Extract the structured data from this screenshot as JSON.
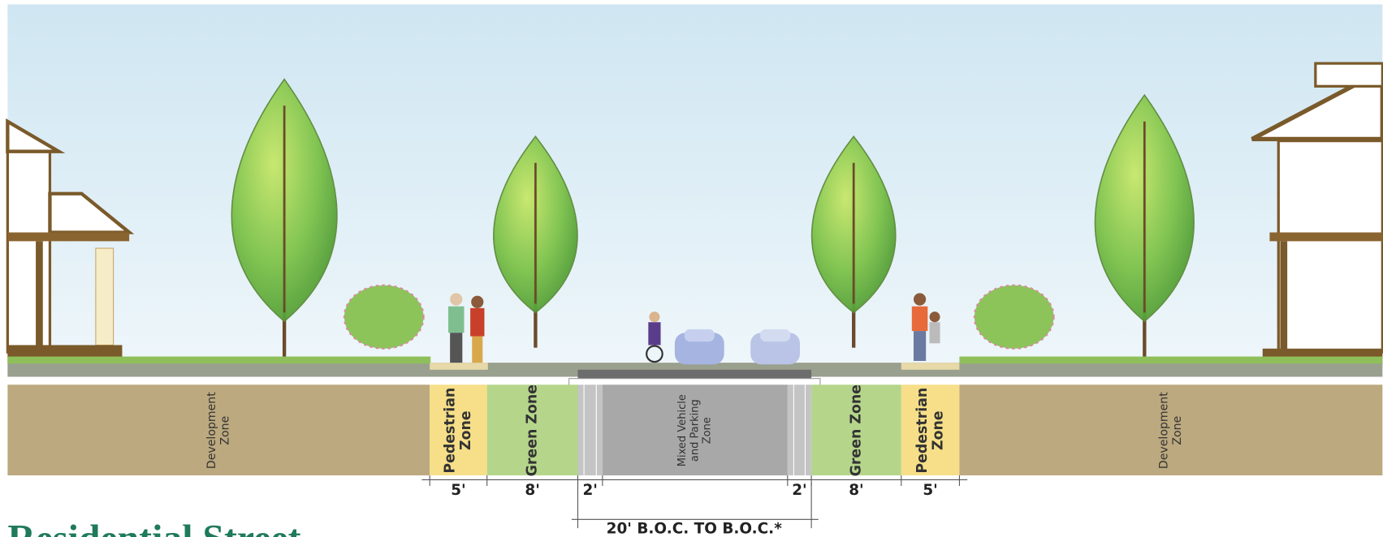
{
  "zones": [
    {
      "lines": [
        "Development",
        "Zone"
      ]
    },
    {
      "lines": [
        "Pedestrian",
        "Zone"
      ]
    },
    {
      "lines": [
        "Green Zone"
      ]
    },
    {
      "lines": [
        "Mixed Vehicle",
        "and Parking",
        "Zone"
      ]
    },
    {
      "lines": [
        "Green Zone"
      ]
    },
    {
      "lines": [
        "Pedestrian",
        "Zone"
      ]
    },
    {
      "lines": [
        "Development",
        "Zone"
      ]
    }
  ],
  "dimensions": [
    "5'",
    "8'",
    "2'",
    "2'",
    "8'",
    "5'"
  ],
  "total_dimension": "20' B.O.C. TO B.O.C.*",
  "title": "Residential Street"
}
